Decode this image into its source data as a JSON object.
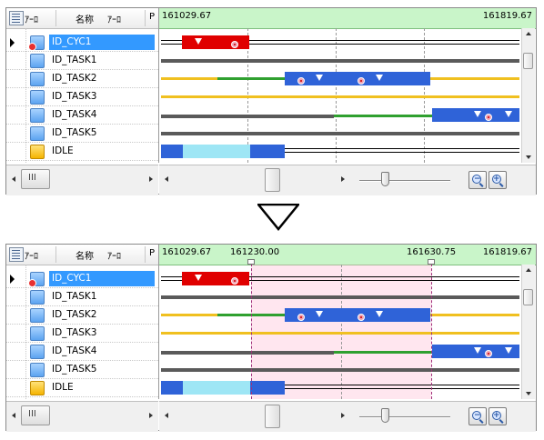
{
  "tree": {
    "header": {
      "name_label": "名称",
      "filter_left": "ｱｰﾛ",
      "filter_right": "ｱｰﾛ",
      "p_label": "P"
    },
    "items": [
      {
        "label": "ID_CYC1",
        "selected": true,
        "icon": "cyclic-handler-icon"
      },
      {
        "label": "ID_TASK1",
        "icon": "task-icon"
      },
      {
        "label": "ID_TASK2",
        "icon": "task-icon"
      },
      {
        "label": "ID_TASK3",
        "icon": "task-icon"
      },
      {
        "label": "ID_TASK4",
        "icon": "task-icon"
      },
      {
        "label": "ID_TASK5",
        "icon": "task-icon"
      },
      {
        "label": "IDLE",
        "icon": "idle-icon"
      }
    ],
    "hscroll_glyph": "III"
  },
  "panel1": {
    "time_start": "161029.67",
    "time_end": "161819.67"
  },
  "panel2": {
    "time_start": "161029.67",
    "cursor1": "161230.00",
    "cursor2": "161630.75",
    "time_end": "161819.67"
  },
  "zoom": {
    "out_symbol": "−",
    "in_symbol": "+"
  },
  "colors": {
    "header_bg": "#c9f5c9",
    "running_red": "#e00000",
    "running_blue": "#2f63d8",
    "ready_yellow": "#f0c020",
    "wait_green": "#2fa02f",
    "idle_cyan": "#9ee6f5",
    "selection": "#3399ff",
    "range_pink": "#ffb6d2"
  }
}
